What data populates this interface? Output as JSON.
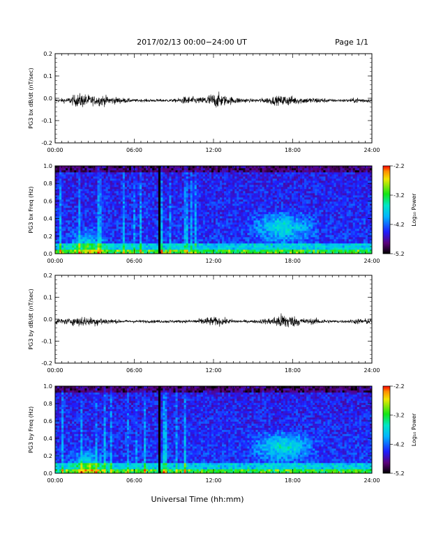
{
  "header": {
    "title": "2017/02/13  00:00−24:00 UT",
    "page": "Page 1/1"
  },
  "xlabel": "Universal Time (hh:mm)",
  "colors": {
    "trace": "#000000",
    "spectrogram_colormap": "rainbow: black-purple-blue-cyan-green-yellow-red",
    "background": "#ffffff"
  },
  "chart_data": [
    {
      "type": "line",
      "title": "",
      "ylabel": "PG3 bx dB/dt (nT/sec)",
      "xlabel": "",
      "xlim": [
        0,
        24
      ],
      "ylim": [
        -0.2,
        0.2
      ],
      "x_ticks": [
        "00:00",
        "06:00",
        "12:00",
        "18:00",
        "24:00"
      ],
      "y_ticks": [
        "0.2",
        "0.1",
        "0.0",
        "-0.1",
        "-0.2"
      ],
      "series": [
        {
          "x": [
            0,
            1,
            1.5,
            2,
            2.5,
            3,
            3.5,
            4,
            5,
            6,
            7,
            8,
            9,
            9.5,
            10,
            11,
            11.5,
            12,
            12.5,
            13,
            14,
            15,
            16,
            16.5,
            17,
            17.5,
            18,
            19,
            20,
            21,
            22,
            23,
            24
          ],
          "y": [
            0.01,
            0.02,
            0.04,
            0.05,
            0.04,
            0.03,
            0.04,
            0.03,
            0.02,
            0.01,
            0.01,
            0.01,
            0.01,
            0.02,
            0.03,
            0.02,
            0.04,
            0.05,
            0.05,
            0.03,
            0.02,
            0.01,
            0.02,
            0.03,
            0.03,
            0.04,
            0.03,
            0.02,
            0.02,
            0.01,
            0.01,
            0.02,
            0.01
          ]
        }
      ]
    },
    {
      "type": "heatmap",
      "title": "",
      "ylabel": "PG3 bx Freq (Hz)",
      "xlabel": "",
      "xlim": [
        0,
        24
      ],
      "ylim": [
        0,
        1.0
      ],
      "x_ticks": [
        "00:00",
        "06:00",
        "12:00",
        "18:00",
        "24:00"
      ],
      "y_ticks": [
        "1.0",
        "0.8",
        "0.6",
        "0.4",
        "0.2",
        "0.0"
      ],
      "colorbar": {
        "label": "Log₁₀ Power",
        "ticks": [
          "-2.2",
          "-3.2",
          "-4.2",
          "-5.2"
        ],
        "range": [
          -5.2,
          -2.2
        ]
      },
      "data_gap_hour": 7.9,
      "enhancements": [
        {
          "time_start": 14.5,
          "time_end": 20.0,
          "freq": 0.3,
          "level": -3.4
        },
        {
          "time_start": 1.0,
          "time_end": 4.0,
          "freq": 0.1,
          "level": -3.6
        }
      ]
    },
    {
      "type": "line",
      "title": "",
      "ylabel": "PG3 by dB/dt (nT/sec)",
      "xlabel": "",
      "xlim": [
        0,
        24
      ],
      "ylim": [
        -0.2,
        0.2
      ],
      "x_ticks": [
        "00:00",
        "06:00",
        "12:00",
        "18:00",
        "24:00"
      ],
      "y_ticks": [
        "0.2",
        "0.1",
        "0.0",
        "-0.1",
        "-0.2"
      ],
      "series": [
        {
          "x": [
            0,
            1,
            1.5,
            2,
            2.5,
            3,
            3.5,
            4,
            5,
            6,
            7,
            8,
            9,
            10,
            11,
            11.5,
            12,
            12.5,
            13,
            14,
            15,
            16,
            16.5,
            17,
            17.5,
            18,
            19,
            20,
            21,
            22,
            23,
            24
          ],
          "y": [
            0.02,
            0.02,
            0.03,
            0.04,
            0.03,
            0.03,
            0.03,
            0.02,
            0.01,
            0.01,
            0.01,
            0.01,
            0.01,
            0.01,
            0.02,
            0.03,
            0.03,
            0.03,
            0.02,
            0.01,
            0.01,
            0.02,
            0.03,
            0.05,
            0.06,
            0.04,
            0.02,
            0.02,
            0.01,
            0.01,
            0.02,
            0.02
          ]
        }
      ]
    },
    {
      "type": "heatmap",
      "title": "",
      "ylabel": "PG3 by Freq (Hz)",
      "xlabel": "",
      "xlim": [
        0,
        24
      ],
      "ylim": [
        0,
        1.0
      ],
      "x_ticks": [
        "00:00",
        "06:00",
        "12:00",
        "18:00",
        "24:00"
      ],
      "y_ticks": [
        "1.0",
        "0.8",
        "0.6",
        "0.4",
        "0.2",
        "0.0"
      ],
      "colorbar": {
        "label": "Log₁₀ Power",
        "ticks": [
          "-2.2",
          "-3.2",
          "-4.2",
          "-5.2"
        ],
        "range": [
          -5.2,
          -2.2
        ]
      },
      "data_gap_hour": 7.9,
      "enhancements": [
        {
          "time_start": 14.5,
          "time_end": 20.0,
          "freq": 0.3,
          "level": -3.3
        },
        {
          "time_start": 1.0,
          "time_end": 4.0,
          "freq": 0.1,
          "level": -3.5
        }
      ]
    }
  ]
}
